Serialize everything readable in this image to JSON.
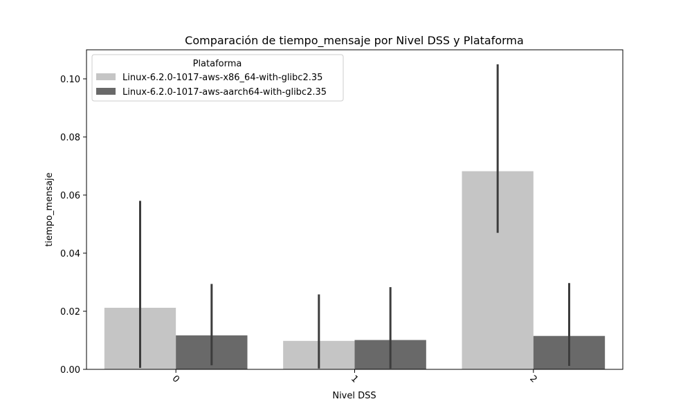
{
  "chart_data": {
    "type": "bar",
    "title": "Comparación de tiempo_mensaje por Nivel DSS y Plataforma",
    "xlabel": "Nivel DSS",
    "ylabel": "tiempo_mensaje",
    "categories": [
      "0",
      "1",
      "2"
    ],
    "ylim": [
      0,
      0.11
    ],
    "yticks": [
      "0.00",
      "0.02",
      "0.04",
      "0.06",
      "0.08",
      "0.10"
    ],
    "xtick_rotation": 45,
    "legend": {
      "title": "Plataforma",
      "position": "upper-left"
    },
    "series": [
      {
        "name": "Linux-6.2.0-1017-aws-x86_64-with-glibc2.35",
        "color": "#c5c5c5",
        "values": [
          0.0212,
          0.0098,
          0.0682
        ],
        "err_low": [
          0.0005,
          0.0003,
          0.047
        ],
        "err_high": [
          0.058,
          0.0258,
          0.105
        ]
      },
      {
        "name": "Linux-6.2.0-1017-aws-aarch64-with-glibc2.35",
        "color": "#696969",
        "values": [
          0.0117,
          0.0101,
          0.0115
        ],
        "err_low": [
          0.0014,
          0.0003,
          0.0012
        ],
        "err_high": [
          0.0294,
          0.0283,
          0.0297
        ]
      }
    ],
    "errorbar_color": "#3c3c3c",
    "grid": false
  }
}
